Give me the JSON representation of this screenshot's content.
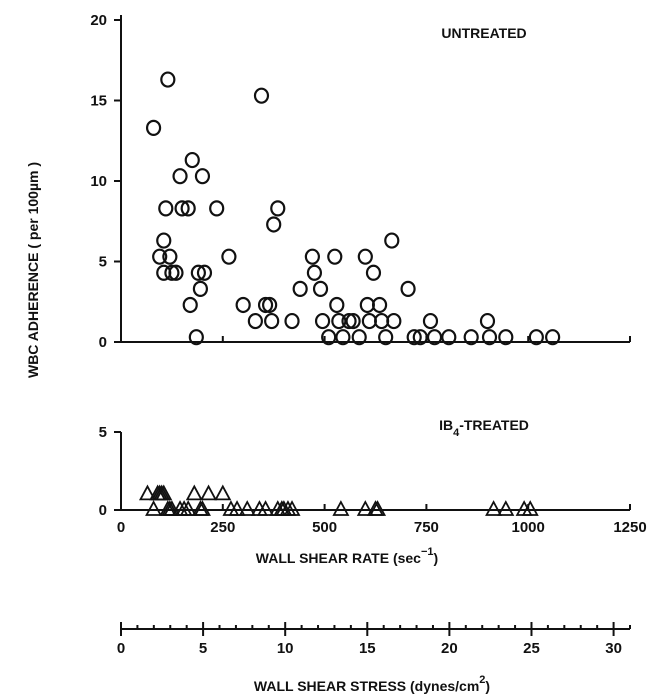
{
  "chart_data": [
    {
      "panel": "untreated",
      "type": "scatter",
      "title": "UNTREATED",
      "ylabel": "WBC ADHERENCE ( per 100µm )",
      "xlim": [
        0,
        1250
      ],
      "ylim": [
        0,
        20
      ],
      "y_ticks": [
        "0",
        "5",
        "10",
        "15",
        "20"
      ],
      "marker": "circle",
      "points": [
        [
          80,
          13.3
        ],
        [
          95,
          5.3
        ],
        [
          105,
          6.3
        ],
        [
          105,
          4.3
        ],
        [
          110,
          8.3
        ],
        [
          115,
          16.3
        ],
        [
          120,
          5.3
        ],
        [
          125,
          4.3
        ],
        [
          135,
          4.3
        ],
        [
          145,
          10.3
        ],
        [
          150,
          8.3
        ],
        [
          165,
          8.3
        ],
        [
          170,
          2.3
        ],
        [
          175,
          11.3
        ],
        [
          185,
          0.3
        ],
        [
          190,
          4.3
        ],
        [
          195,
          3.3
        ],
        [
          200,
          10.3
        ],
        [
          205,
          4.3
        ],
        [
          235,
          8.3
        ],
        [
          265,
          5.3
        ],
        [
          300,
          2.3
        ],
        [
          330,
          1.3
        ],
        [
          345,
          15.3
        ],
        [
          355,
          2.3
        ],
        [
          365,
          2.3
        ],
        [
          370,
          1.3
        ],
        [
          375,
          7.3
        ],
        [
          385,
          8.3
        ],
        [
          420,
          1.3
        ],
        [
          440,
          3.3
        ],
        [
          470,
          5.3
        ],
        [
          475,
          4.3
        ],
        [
          490,
          3.3
        ],
        [
          495,
          1.3
        ],
        [
          510,
          0.3
        ],
        [
          525,
          5.3
        ],
        [
          530,
          2.3
        ],
        [
          535,
          1.3
        ],
        [
          545,
          0.3
        ],
        [
          560,
          1.3
        ],
        [
          570,
          1.3
        ],
        [
          585,
          0.3
        ],
        [
          600,
          5.3
        ],
        [
          605,
          2.3
        ],
        [
          610,
          1.3
        ],
        [
          620,
          4.3
        ],
        [
          635,
          2.3
        ],
        [
          640,
          1.3
        ],
        [
          650,
          0.3
        ],
        [
          665,
          6.3
        ],
        [
          670,
          1.3
        ],
        [
          705,
          3.3
        ],
        [
          720,
          0.3
        ],
        [
          735,
          0.3
        ],
        [
          760,
          1.3
        ],
        [
          770,
          0.3
        ],
        [
          805,
          0.3
        ],
        [
          860,
          0.3
        ],
        [
          900,
          1.3
        ],
        [
          905,
          0.3
        ],
        [
          945,
          0.3
        ],
        [
          1020,
          0.3
        ],
        [
          1060,
          0.3
        ]
      ]
    },
    {
      "panel": "ib4_treated",
      "type": "scatter",
      "title": "IB4-TREATED",
      "title_parts": {
        "prefix": "IB",
        "subscript": "4",
        "suffix": "-TREATED"
      },
      "xlabel": "WALL SHEAR RATE (sec⁻¹)",
      "xlabel_parts": {
        "main": "WALL SHEAR RATE (sec",
        "superscript": "−1",
        "close": ")"
      },
      "xlim": [
        0,
        1250
      ],
      "ylim": [
        0,
        5
      ],
      "x_ticks": [
        "0",
        "250",
        "500",
        "750",
        "1000",
        "1250"
      ],
      "y_ticks": [
        "0",
        "5"
      ],
      "marker": "triangle",
      "points": [
        [
          65,
          1
        ],
        [
          80,
          0
        ],
        [
          90,
          1
        ],
        [
          95,
          1
        ],
        [
          100,
          1
        ],
        [
          105,
          1
        ],
        [
          115,
          0
        ],
        [
          120,
          0
        ],
        [
          125,
          0
        ],
        [
          145,
          0
        ],
        [
          155,
          0
        ],
        [
          165,
          0
        ],
        [
          180,
          1
        ],
        [
          195,
          0
        ],
        [
          200,
          0
        ],
        [
          215,
          1
        ],
        [
          250,
          1
        ],
        [
          270,
          0
        ],
        [
          285,
          0
        ],
        [
          310,
          0
        ],
        [
          340,
          0
        ],
        [
          355,
          0
        ],
        [
          385,
          0
        ],
        [
          395,
          0
        ],
        [
          400,
          0
        ],
        [
          410,
          0
        ],
        [
          420,
          0
        ],
        [
          540,
          0
        ],
        [
          600,
          0
        ],
        [
          630,
          0
        ],
        [
          625,
          0
        ],
        [
          915,
          0
        ],
        [
          945,
          0
        ],
        [
          990,
          0
        ],
        [
          1005,
          0
        ]
      ]
    },
    {
      "panel": "wall_shear_stress_axis",
      "type": "axis",
      "xlabel": "WALL SHEAR STRESS (dynes/cm²)",
      "xlabel_parts": {
        "main": "WALL SHEAR STRESS (dynes/cm",
        "superscript": "2",
        "close": ")"
      },
      "xlim": [
        0,
        31
      ],
      "x_ticks": [
        "0",
        "5",
        "10",
        "15",
        "20",
        "25",
        "30"
      ]
    }
  ]
}
